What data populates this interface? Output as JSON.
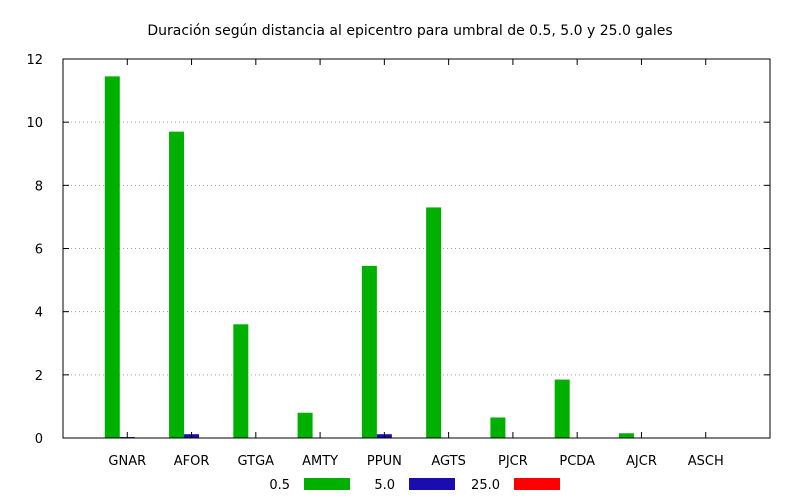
{
  "chart_data": {
    "type": "bar",
    "title": "Duración según distancia al epicentro para umbral de 0.5, 5.0 y 25.0 gales",
    "xlabel": "",
    "ylabel": "",
    "categories": [
      "GNAR",
      "AFOR",
      "GTGA",
      "AMTY",
      "PPUN",
      "AGTS",
      "PJCR",
      "PCDA",
      "AJCR",
      "ASCH"
    ],
    "ylim": [
      0,
      12
    ],
    "yticks": [
      0,
      2,
      4,
      6,
      8,
      10,
      12
    ],
    "grid": true,
    "legend": "bottom",
    "series": [
      {
        "name": "0.5",
        "color": "#00b000",
        "values": [
          11.45,
          9.7,
          3.6,
          0.8,
          5.45,
          7.3,
          0.65,
          1.85,
          0.15,
          0
        ]
      },
      {
        "name": "5.0",
        "color": "#1a0db0",
        "values": [
          0.03,
          0.12,
          0,
          0,
          0.12,
          0,
          0,
          0,
          0,
          0
        ]
      },
      {
        "name": "25.0",
        "color": "#ff0000",
        "values": [
          0,
          0,
          0,
          0,
          0,
          0,
          0,
          0,
          0,
          0
        ]
      }
    ]
  }
}
